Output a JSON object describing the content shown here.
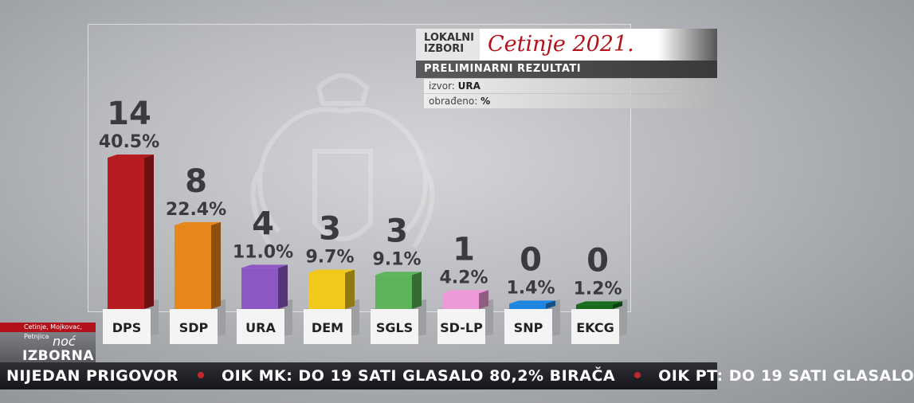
{
  "header": {
    "small_line1": "LOKALNI",
    "small_line2": "IZBORI",
    "city": "Cetinje 2021.",
    "subtitle": "PRELIMINARNI REZULTATI",
    "source_label": "izvor:",
    "source_value": "URA",
    "processed_label": "obrađeno:",
    "processed_value": "%"
  },
  "chart_data": {
    "type": "bar",
    "categories": [
      "DPS",
      "SDP",
      "URA",
      "DEM",
      "SGLS",
      "SD-LP",
      "SNP",
      "EKCG"
    ],
    "values": [
      40.5,
      22.4,
      11.0,
      9.7,
      9.1,
      4.2,
      1.4,
      1.2
    ],
    "value_labels": [
      "40.5%",
      "22.4%",
      "11.0%",
      "9.7%",
      "9.1%",
      "4.2%",
      "1.4%",
      "1.2%"
    ],
    "seats": [
      14,
      8,
      4,
      3,
      3,
      1,
      0,
      0
    ],
    "colors": [
      "#b51d20",
      "#e9861a",
      "#8e58c4",
      "#f2c81c",
      "#5cb35a",
      "#ee9ad8",
      "#1f86e0",
      "#166b1d"
    ],
    "ylim": [
      0,
      42
    ]
  },
  "logo": {
    "top_text": "Cetinje, Mojkovac, Petnjica",
    "word1": "noć",
    "word2": "IZBORNA"
  },
  "ticker": {
    "items": [
      "NIJEDAN PRIGOVOR",
      "OIK MK: DO 19 SATI GLASALO 80,2% BIRAČA",
      "OIK PT: DO 19 SATI GLASALO"
    ]
  }
}
